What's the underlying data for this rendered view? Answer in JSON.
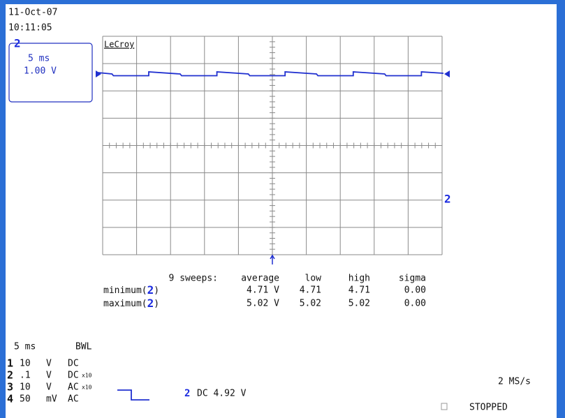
{
  "header": {
    "date": "11-Oct-07",
    "time": "10:11:05"
  },
  "channel_box": {
    "channel": "2",
    "timebase": "5 ms",
    "volts": "1.00 V"
  },
  "brand": "LeCroy",
  "trace_marker": "2",
  "stats": {
    "columns": [
      "9 sweeps:",
      "average",
      "low",
      "high",
      "sigma"
    ],
    "rows": [
      {
        "label_parts": [
          "minimum(",
          "2",
          ")"
        ],
        "values": [
          "4.71 V",
          "4.71",
          "4.71",
          "0.00"
        ]
      },
      {
        "label_parts": [
          "maximum(",
          "2",
          ")"
        ],
        "values": [
          "5.02 V",
          "5.02",
          "5.02",
          "0.00"
        ]
      }
    ]
  },
  "bottom": {
    "timebase": "5 ms",
    "bwl": "BWL",
    "channels": [
      {
        "number": "1",
        "scale": "10",
        "unit": "V",
        "coupling": "DC"
      },
      {
        "number": "2",
        "scale": ".1",
        "unit": "V",
        "coupling": "DC",
        "probe": "x10"
      },
      {
        "number": "3",
        "scale": "10",
        "unit": "V",
        "coupling": "AC",
        "probe": "x10"
      },
      {
        "number": "4",
        "scale": "50",
        "unit": "mV",
        "coupling": "AC"
      }
    ]
  },
  "trigger": {
    "channel": "2",
    "text": "DC 4.92 V"
  },
  "sample_rate": "2 MS/s",
  "status": "STOPPED"
}
